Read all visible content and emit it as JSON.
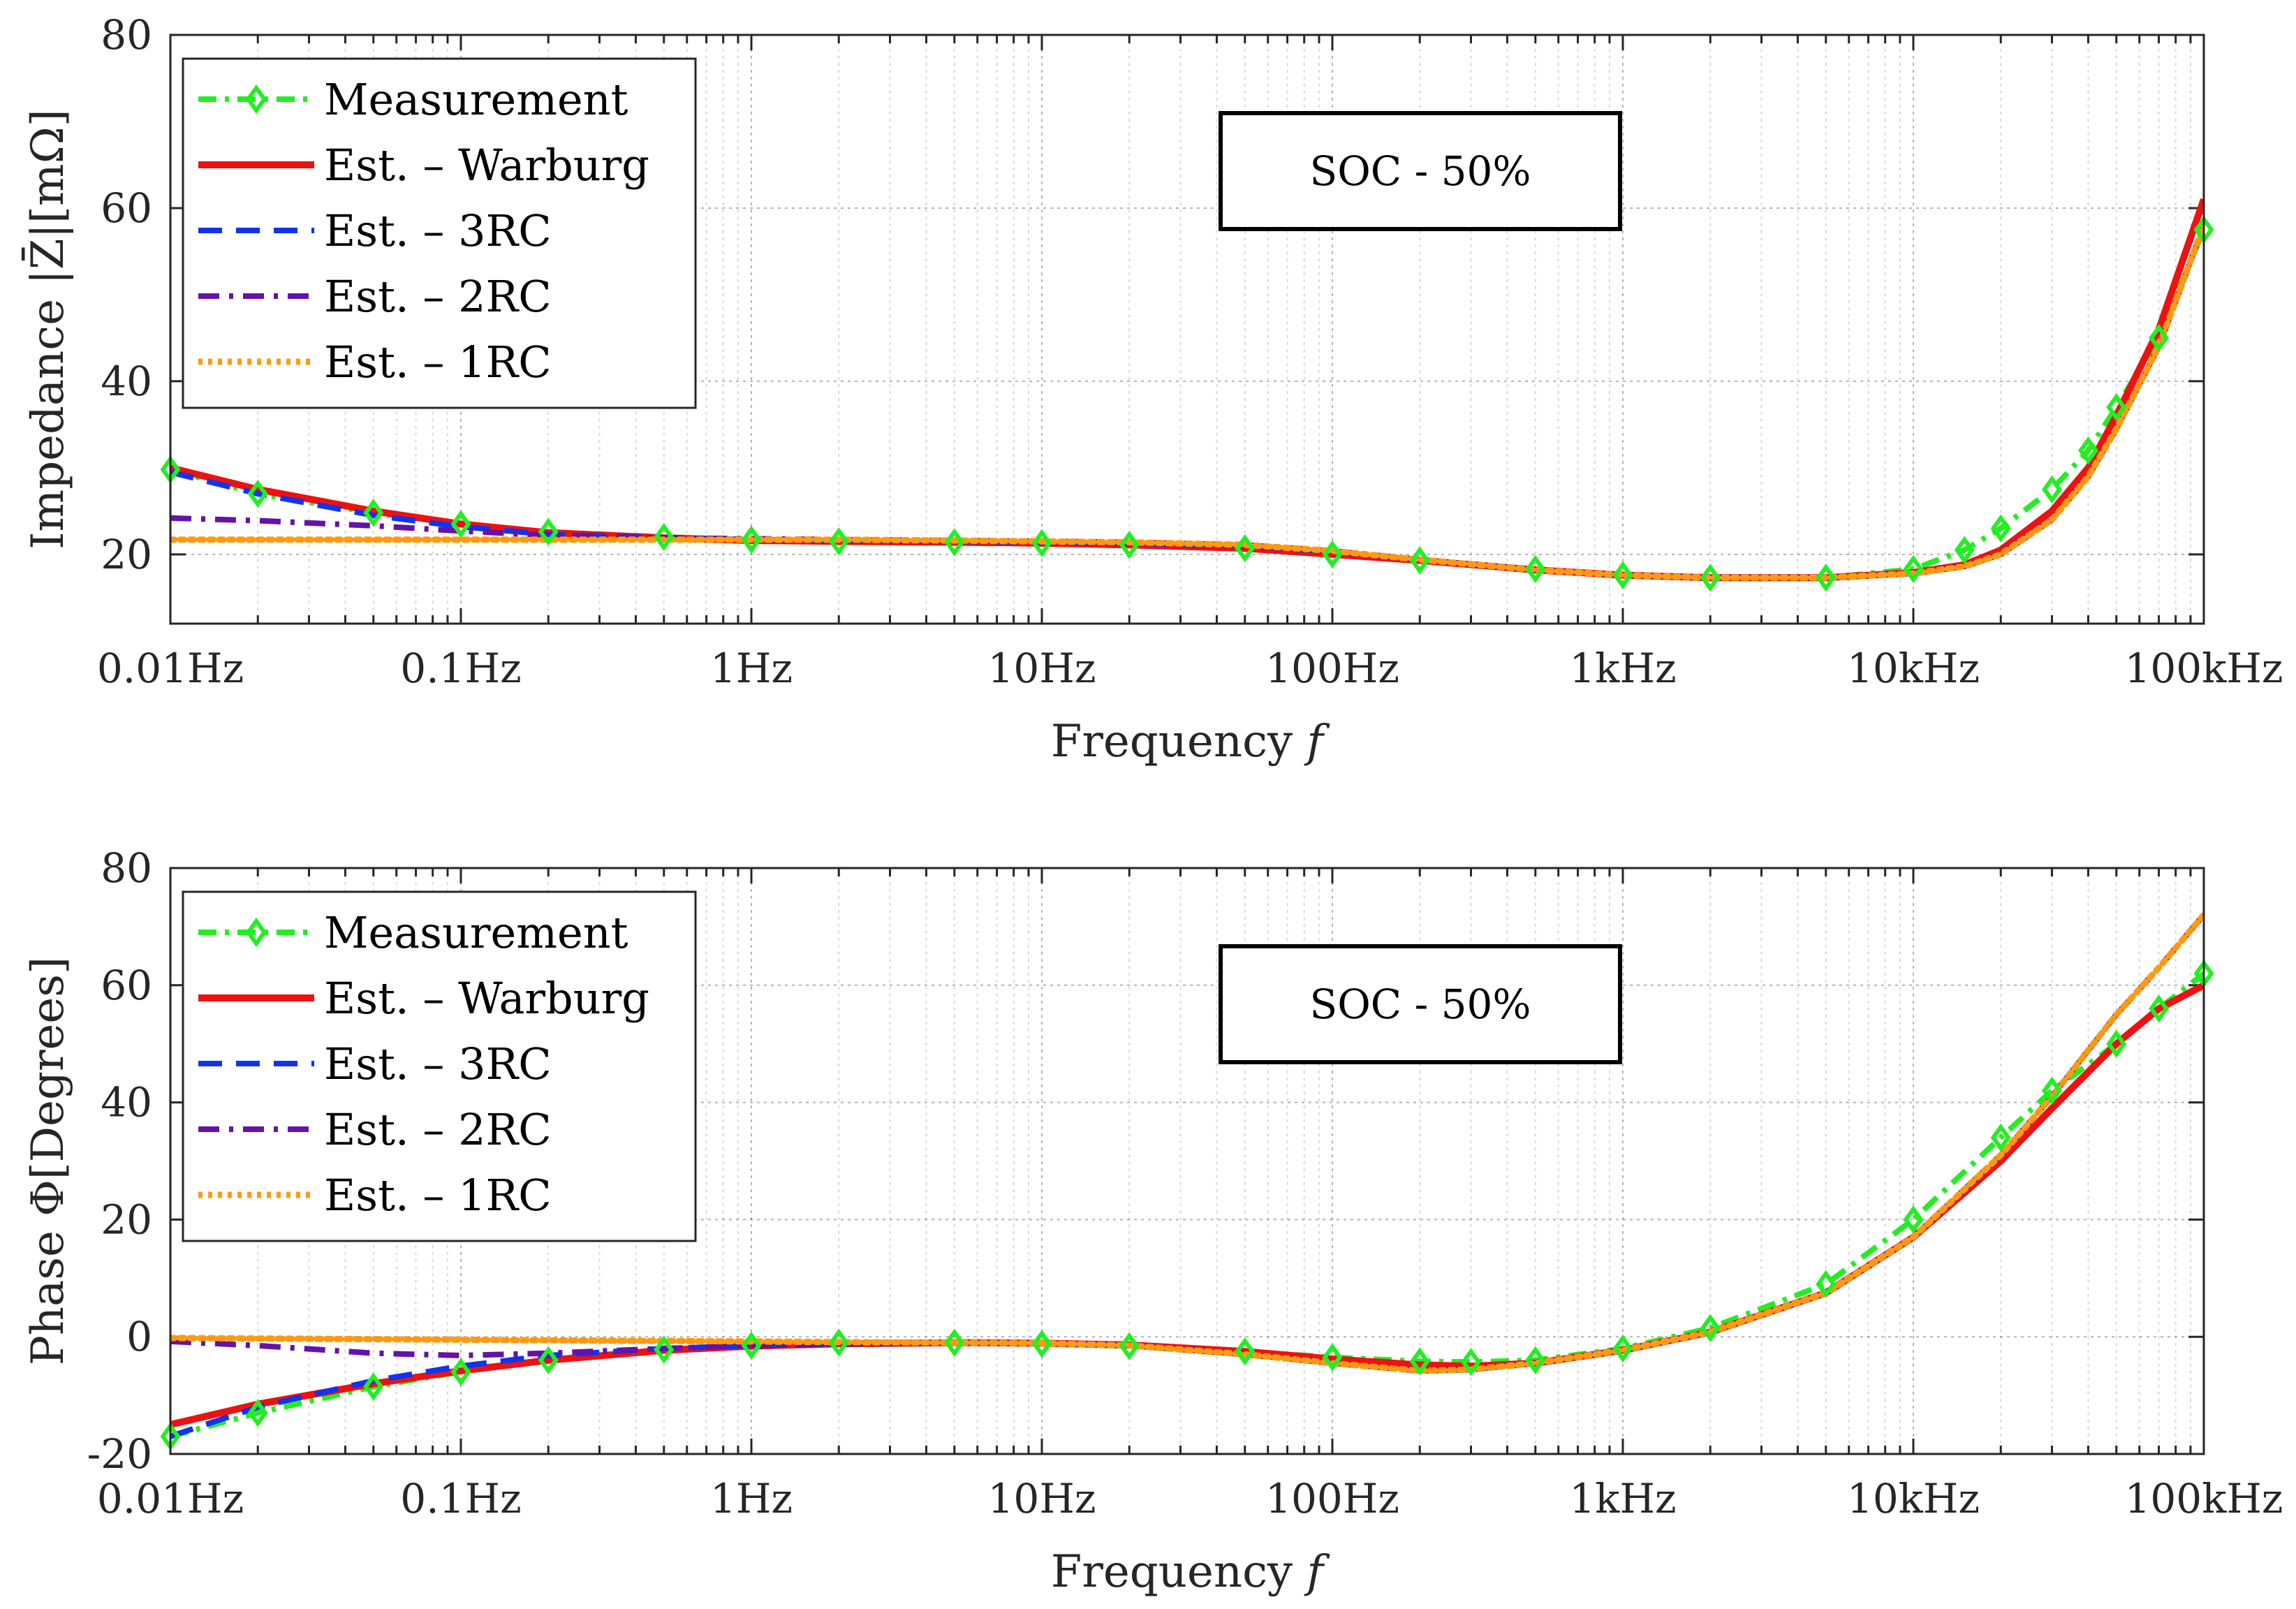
{
  "chart_data": [
    {
      "type": "line",
      "id": "impedance",
      "xscale": "log",
      "xlim": [
        0.01,
        100000
      ],
      "ylim": [
        12,
        80
      ],
      "yticks": [
        20,
        40,
        60,
        80
      ],
      "xtick_values": [
        0.01,
        0.1,
        1,
        10,
        100,
        1000,
        10000,
        100000
      ],
      "xtick_labels": [
        "0.01Hz",
        "0.1Hz",
        "1Hz",
        "10Hz",
        "100Hz",
        "1kHz",
        "10kHz",
        "100kHz"
      ],
      "xlabel": "Frequency",
      "xlabel_symbol": "f",
      "ylabel": "Impedance |Z̄|[mΩ]",
      "grid": true,
      "legend_position": "top-left",
      "annotation": "SOC - 50%",
      "series": [
        {
          "name": "Measurement",
          "color": "#22ee22",
          "style": "dash-dot-diamond",
          "x": [
            0.01,
            0.02,
            0.05,
            0.1,
            0.2,
            0.5,
            1,
            2,
            5,
            10,
            20,
            50,
            100,
            200,
            500,
            1000,
            2000,
            5000,
            10000,
            15000,
            20000,
            30000,
            40000,
            50000,
            70000,
            100000
          ],
          "y": [
            29.8,
            27.0,
            24.8,
            23.5,
            22.6,
            22.0,
            21.7,
            21.5,
            21.4,
            21.3,
            21.1,
            20.7,
            20.0,
            19.3,
            18.3,
            17.6,
            17.3,
            17.3,
            18.3,
            20.5,
            23.0,
            27.5,
            32.0,
            37.0,
            45.0,
            57.5
          ]
        },
        {
          "name": "Est. – Warburg",
          "color": "#ee1111",
          "style": "solid",
          "x": [
            0.01,
            0.02,
            0.05,
            0.1,
            0.2,
            0.5,
            1,
            2,
            5,
            10,
            20,
            50,
            100,
            200,
            500,
            1000,
            2000,
            5000,
            10000,
            15000,
            20000,
            30000,
            40000,
            50000,
            70000,
            100000
          ],
          "y": [
            30.0,
            27.5,
            25.0,
            23.5,
            22.5,
            21.9,
            21.6,
            21.5,
            21.4,
            21.3,
            21.1,
            20.7,
            20.0,
            19.3,
            18.2,
            17.6,
            17.3,
            17.3,
            17.9,
            18.8,
            20.5,
            25.0,
            30.0,
            36.0,
            46.0,
            61.0
          ]
        },
        {
          "name": "Est. – 3RC",
          "color": "#1133ee",
          "style": "dashed",
          "x": [
            0.01,
            0.02,
            0.05,
            0.1,
            0.2,
            0.5,
            1,
            2,
            5,
            10,
            20,
            50,
            100,
            200,
            500,
            1000,
            2000,
            5000,
            10000,
            15000,
            20000,
            30000,
            40000,
            50000,
            70000,
            100000
          ],
          "y": [
            29.5,
            27.0,
            24.5,
            23.2,
            22.3,
            21.9,
            21.7,
            21.6,
            21.5,
            21.4,
            21.3,
            21.0,
            20.3,
            19.4,
            18.2,
            17.6,
            17.3,
            17.3,
            17.8,
            18.6,
            20.0,
            24.0,
            29.0,
            34.5,
            44.0,
            58.0
          ]
        },
        {
          "name": "Est. – 2RC",
          "color": "#6611aa",
          "style": "dash-dot",
          "x": [
            0.01,
            0.02,
            0.05,
            0.1,
            0.2,
            0.5,
            1,
            2,
            5,
            10,
            20,
            50,
            100,
            200,
            500,
            1000,
            2000,
            5000,
            10000,
            15000,
            20000,
            30000,
            40000,
            50000,
            70000,
            100000
          ],
          "y": [
            24.2,
            23.9,
            23.3,
            22.7,
            22.2,
            21.9,
            21.8,
            21.7,
            21.6,
            21.5,
            21.4,
            21.1,
            20.4,
            19.4,
            18.2,
            17.6,
            17.3,
            17.3,
            17.8,
            18.6,
            20.0,
            24.0,
            29.0,
            34.5,
            44.0,
            58.0
          ]
        },
        {
          "name": "Est. – 1RC",
          "color": "#ff9911",
          "style": "dotted",
          "x": [
            0.01,
            0.02,
            0.05,
            0.1,
            0.2,
            0.5,
            1,
            2,
            5,
            10,
            20,
            50,
            100,
            200,
            500,
            1000,
            2000,
            5000,
            10000,
            15000,
            20000,
            30000,
            40000,
            50000,
            70000,
            100000
          ],
          "y": [
            21.7,
            21.7,
            21.7,
            21.7,
            21.7,
            21.7,
            21.7,
            21.7,
            21.6,
            21.5,
            21.4,
            21.1,
            20.4,
            19.4,
            18.2,
            17.6,
            17.3,
            17.3,
            17.8,
            18.6,
            20.0,
            24.0,
            29.0,
            34.5,
            44.0,
            58.0
          ]
        }
      ]
    },
    {
      "type": "line",
      "id": "phase",
      "xscale": "log",
      "xlim": [
        0.01,
        100000
      ],
      "ylim": [
        -20,
        80
      ],
      "yticks": [
        -20,
        0,
        20,
        40,
        60,
        80
      ],
      "xtick_values": [
        0.01,
        0.1,
        1,
        10,
        100,
        1000,
        10000,
        100000
      ],
      "xtick_labels": [
        "0.01Hz",
        "0.1Hz",
        "1Hz",
        "10Hz",
        "100Hz",
        "1kHz",
        "10kHz",
        "100kHz"
      ],
      "xlabel": "Frequency",
      "xlabel_symbol": "f",
      "ylabel": "Phase Φ[Degrees]",
      "grid": true,
      "legend_position": "top-left",
      "annotation": "SOC - 50%",
      "series": [
        {
          "name": "Measurement",
          "color": "#22ee22",
          "style": "dash-dot-diamond",
          "x": [
            0.01,
            0.02,
            0.05,
            0.1,
            0.2,
            0.5,
            1,
            2,
            5,
            10,
            20,
            50,
            100,
            200,
            300,
            500,
            1000,
            2000,
            5000,
            10000,
            20000,
            30000,
            50000,
            70000,
            100000
          ],
          "y": [
            -17.0,
            -13.0,
            -8.5,
            -6.0,
            -4.0,
            -2.2,
            -1.5,
            -1.0,
            -1.0,
            -1.2,
            -1.6,
            -2.5,
            -3.5,
            -4.2,
            -4.3,
            -4.0,
            -2.0,
            1.5,
            9.0,
            20.0,
            34.0,
            42.0,
            50.0,
            56.0,
            62.0
          ]
        },
        {
          "name": "Est. – Warburg",
          "color": "#ee1111",
          "style": "solid",
          "x": [
            0.01,
            0.02,
            0.05,
            0.1,
            0.2,
            0.5,
            1,
            2,
            5,
            10,
            20,
            50,
            100,
            200,
            300,
            500,
            1000,
            2000,
            5000,
            10000,
            20000,
            30000,
            50000,
            70000,
            100000
          ],
          "y": [
            -15.0,
            -11.5,
            -8.0,
            -5.8,
            -4.0,
            -2.3,
            -1.6,
            -1.2,
            -1.0,
            -1.1,
            -1.4,
            -2.5,
            -3.8,
            -4.8,
            -5.0,
            -4.5,
            -2.3,
            0.8,
            7.5,
            17.0,
            30.0,
            39.0,
            50.0,
            56.0,
            60.0
          ]
        },
        {
          "name": "Est. – 3RC",
          "color": "#1133ee",
          "style": "dashed",
          "x": [
            0.01,
            0.02,
            0.05,
            0.1,
            0.2,
            0.5,
            1,
            2,
            5,
            10,
            20,
            50,
            100,
            200,
            300,
            500,
            1000,
            2000,
            5000,
            10000,
            20000,
            30000,
            50000,
            70000,
            100000
          ],
          "y": [
            -17.0,
            -12.0,
            -7.5,
            -5.0,
            -3.2,
            -2.0,
            -1.5,
            -1.2,
            -1.0,
            -1.1,
            -1.5,
            -3.0,
            -4.5,
            -5.8,
            -5.6,
            -4.5,
            -2.3,
            0.8,
            7.5,
            17.0,
            31.0,
            41.0,
            55.0,
            63.0,
            72.0
          ]
        },
        {
          "name": "Est. – 2RC",
          "color": "#6611aa",
          "style": "dash-dot",
          "x": [
            0.01,
            0.02,
            0.05,
            0.1,
            0.2,
            0.5,
            1,
            2,
            5,
            10,
            20,
            50,
            100,
            200,
            300,
            500,
            1000,
            2000,
            5000,
            10000,
            20000,
            30000,
            50000,
            70000,
            100000
          ],
          "y": [
            -0.8,
            -1.5,
            -2.8,
            -3.2,
            -2.8,
            -2.0,
            -1.5,
            -1.2,
            -1.0,
            -1.1,
            -1.5,
            -3.0,
            -4.5,
            -5.8,
            -5.6,
            -4.5,
            -2.3,
            0.8,
            7.5,
            17.0,
            31.0,
            41.0,
            55.0,
            63.0,
            72.0
          ]
        },
        {
          "name": "Est. – 1RC",
          "color": "#ff9911",
          "style": "dotted",
          "x": [
            0.01,
            0.02,
            0.05,
            0.1,
            0.2,
            0.5,
            1,
            2,
            5,
            10,
            20,
            50,
            100,
            200,
            300,
            500,
            1000,
            2000,
            5000,
            10000,
            20000,
            30000,
            50000,
            70000,
            100000
          ],
          "y": [
            -0.2,
            -0.3,
            -0.4,
            -0.5,
            -0.6,
            -0.7,
            -0.8,
            -0.9,
            -1.0,
            -1.1,
            -1.5,
            -3.0,
            -4.5,
            -5.8,
            -5.6,
            -4.5,
            -2.3,
            0.8,
            7.5,
            17.0,
            31.0,
            41.0,
            55.0,
            63.0,
            72.0
          ]
        }
      ]
    }
  ]
}
